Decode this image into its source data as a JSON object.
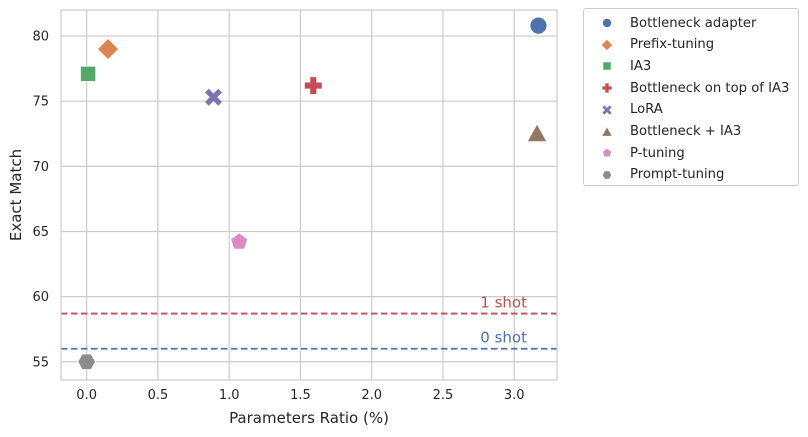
{
  "chart_data": {
    "type": "scatter",
    "xlabel": "Parameters Ratio (%)",
    "ylabel": "Exact Match",
    "xlim": [
      -0.18,
      3.3
    ],
    "ylim": [
      53.6,
      82.0
    ],
    "xticks": [
      0.0,
      0.5,
      1.0,
      1.5,
      2.0,
      2.5,
      3.0
    ],
    "xtick_labels": [
      "0.0",
      "0.5",
      "1.0",
      "1.5",
      "2.0",
      "2.5",
      "3.0"
    ],
    "yticks": [
      55,
      60,
      65,
      70,
      75,
      80
    ],
    "ytick_labels": [
      "55",
      "60",
      "65",
      "70",
      "75",
      "80"
    ],
    "grid": true,
    "legend_position": "outside-right",
    "series": [
      {
        "name": "Bottleneck adapter",
        "marker": "circle",
        "color": "#4c72b0",
        "x": 3.17,
        "y": 80.8
      },
      {
        "name": "Prefix-tuning",
        "marker": "diamond",
        "color": "#dd8452",
        "x": 0.15,
        "y": 79.0
      },
      {
        "name": "IA3",
        "marker": "square",
        "color": "#55a868",
        "x": 0.01,
        "y": 77.1
      },
      {
        "name": "Bottleneck on top of IA3",
        "marker": "plus",
        "color": "#c44e52",
        "x": 1.59,
        "y": 76.2
      },
      {
        "name": "LoRA",
        "marker": "x",
        "color": "#8172b3",
        "x": 0.89,
        "y": 75.3
      },
      {
        "name": "Bottleneck + IA3",
        "marker": "triangle",
        "color": "#937860",
        "x": 3.16,
        "y": 72.5
      },
      {
        "name": "P-tuning",
        "marker": "pentagon",
        "color": "#da8bc3",
        "x": 1.07,
        "y": 64.2
      },
      {
        "name": "Prompt-tuning",
        "marker": "hexagon",
        "color": "#8c8c8c",
        "x": 0.0,
        "y": 55.0
      }
    ],
    "reference_lines": [
      {
        "label": "1 shot",
        "y": 58.7,
        "color": "#c44e52"
      },
      {
        "label": "0 shot",
        "y": 56.0,
        "color": "#4c72b0"
      }
    ]
  }
}
